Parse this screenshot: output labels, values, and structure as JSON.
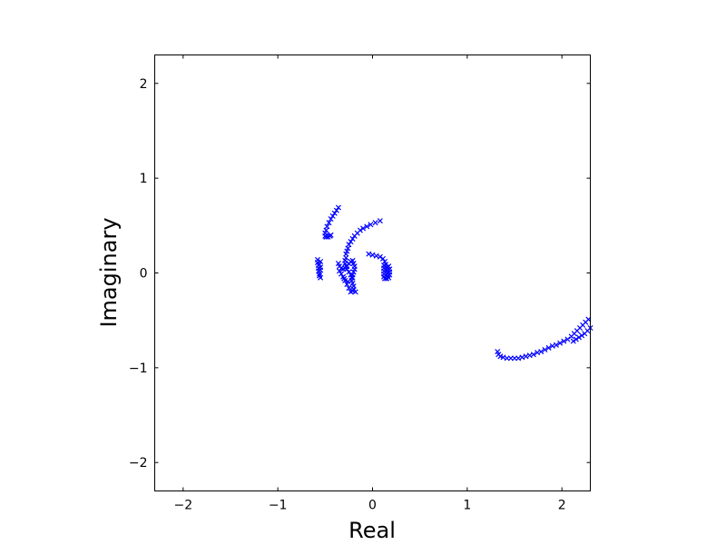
{
  "chart_data": {
    "type": "scatter",
    "title": "",
    "xlabel": "Real",
    "ylabel": "Imaginary",
    "xlim": [
      -2.3,
      2.3
    ],
    "ylim": [
      -2.3,
      2.3
    ],
    "xticks": [
      -2,
      -1,
      0,
      1,
      2
    ],
    "yticks": [
      -2,
      -1,
      0,
      1,
      2
    ],
    "xtick_labels": [
      "−2",
      "−1",
      "0",
      "1",
      "2"
    ],
    "ytick_labels": [
      "−2",
      "−1",
      "0",
      "1",
      "2"
    ],
    "grid": false,
    "legend": "none",
    "marker": "x",
    "color": "#0000ff",
    "series": [
      {
        "points": [
          [
            0.08,
            0.55
          ],
          [
            0.03,
            0.53
          ],
          [
            -0.02,
            0.51
          ],
          [
            -0.06,
            0.49
          ],
          [
            -0.1,
            0.47
          ],
          [
            -0.13,
            0.45
          ],
          [
            -0.16,
            0.42
          ],
          [
            -0.19,
            0.39
          ],
          [
            -0.21,
            0.36
          ],
          [
            -0.23,
            0.33
          ],
          [
            -0.25,
            0.3
          ],
          [
            -0.26,
            0.26
          ],
          [
            -0.27,
            0.23
          ],
          [
            -0.28,
            0.2
          ],
          [
            -0.28,
            0.16
          ],
          [
            -0.29,
            0.13
          ],
          [
            -0.29,
            0.1
          ],
          [
            -0.28,
            0.07
          ],
          [
            -0.27,
            0.04
          ],
          [
            -0.25,
            0.01
          ],
          [
            -0.23,
            -0.02
          ],
          [
            -0.21,
            -0.05
          ]
        ]
      },
      {
        "points": [
          [
            -0.36,
            0.69
          ],
          [
            -0.38,
            0.66
          ],
          [
            -0.4,
            0.63
          ],
          [
            -0.42,
            0.6
          ],
          [
            -0.44,
            0.57
          ],
          [
            -0.46,
            0.53
          ],
          [
            -0.48,
            0.49
          ],
          [
            -0.49,
            0.45
          ],
          [
            -0.5,
            0.42
          ],
          [
            -0.5,
            0.39
          ],
          [
            -0.49,
            0.38
          ],
          [
            -0.47,
            0.38
          ],
          [
            -0.45,
            0.39
          ],
          [
            -0.44,
            0.4
          ]
        ]
      },
      {
        "points": [
          [
            -0.58,
            0.14
          ],
          [
            -0.58,
            0.11
          ],
          [
            -0.57,
            0.08
          ],
          [
            -0.57,
            0.05
          ],
          [
            -0.57,
            0.02
          ],
          [
            -0.56,
            -0.01
          ],
          [
            -0.56,
            -0.03
          ],
          [
            -0.55,
            -0.05
          ],
          [
            -0.55,
            0.12
          ],
          [
            -0.56,
            0.09
          ],
          [
            -0.55,
            0.06
          ],
          [
            -0.55,
            0.03
          ]
        ]
      },
      {
        "points": [
          [
            -0.36,
            0.1
          ],
          [
            -0.35,
            0.07
          ],
          [
            -0.33,
            0.05
          ],
          [
            -0.31,
            0.04
          ],
          [
            -0.29,
            0.05
          ],
          [
            -0.27,
            0.07
          ],
          [
            -0.25,
            0.1
          ],
          [
            -0.23,
            0.12
          ],
          [
            -0.21,
            0.13
          ],
          [
            -0.2,
            0.1
          ],
          [
            -0.19,
            0.07
          ],
          [
            -0.19,
            0.04
          ],
          [
            -0.2,
            0.01
          ],
          [
            -0.21,
            -0.02
          ],
          [
            -0.22,
            -0.05
          ],
          [
            -0.22,
            -0.08
          ],
          [
            -0.21,
            -0.11
          ],
          [
            -0.2,
            -0.14
          ],
          [
            -0.2,
            -0.17
          ],
          [
            -0.21,
            -0.19
          ],
          [
            -0.23,
            -0.2
          ],
          [
            -0.18,
            -0.2
          ],
          [
            -0.25,
            -0.16
          ],
          [
            -0.27,
            -0.12
          ],
          [
            -0.29,
            -0.08
          ],
          [
            -0.31,
            -0.04
          ],
          [
            -0.33,
            -0.01
          ],
          [
            -0.35,
            0.02
          ],
          [
            -0.3,
            -0.06
          ],
          [
            -0.26,
            -0.09
          ]
        ]
      },
      {
        "points": [
          [
            -0.04,
            0.2
          ],
          [
            0.0,
            0.19
          ],
          [
            0.04,
            0.18
          ],
          [
            0.08,
            0.17
          ],
          [
            0.11,
            0.15
          ],
          [
            0.13,
            0.12
          ],
          [
            0.14,
            0.09
          ],
          [
            0.15,
            0.06
          ],
          [
            0.15,
            0.03
          ],
          [
            0.16,
            0.0
          ],
          [
            0.16,
            -0.03
          ],
          [
            0.15,
            -0.06
          ],
          [
            0.13,
            -0.06
          ],
          [
            0.12,
            -0.04
          ],
          [
            0.12,
            -0.01
          ],
          [
            0.12,
            0.02
          ],
          [
            0.12,
            0.05
          ],
          [
            0.12,
            0.08
          ],
          [
            0.17,
            0.07
          ],
          [
            0.18,
            0.04
          ],
          [
            0.18,
            0.01
          ],
          [
            0.18,
            -0.02
          ],
          [
            0.17,
            -0.05
          ]
        ]
      },
      {
        "points": [
          [
            1.32,
            -0.83
          ],
          [
            1.33,
            -0.86
          ],
          [
            1.35,
            -0.88
          ],
          [
            1.38,
            -0.89
          ],
          [
            1.42,
            -0.9
          ],
          [
            1.46,
            -0.9
          ],
          [
            1.5,
            -0.9
          ],
          [
            1.54,
            -0.9
          ],
          [
            1.58,
            -0.89
          ],
          [
            1.62,
            -0.88
          ],
          [
            1.66,
            -0.87
          ],
          [
            1.7,
            -0.86
          ],
          [
            1.74,
            -0.84
          ],
          [
            1.78,
            -0.83
          ],
          [
            1.82,
            -0.81
          ],
          [
            1.86,
            -0.79
          ],
          [
            1.9,
            -0.77
          ],
          [
            1.94,
            -0.76
          ],
          [
            1.98,
            -0.74
          ],
          [
            2.02,
            -0.72
          ],
          [
            2.06,
            -0.7
          ],
          [
            2.1,
            -0.67
          ],
          [
            2.13,
            -0.64
          ],
          [
            2.16,
            -0.61
          ],
          [
            2.19,
            -0.58
          ],
          [
            2.22,
            -0.55
          ],
          [
            2.25,
            -0.52
          ],
          [
            2.28,
            -0.49
          ]
        ]
      },
      {
        "points": [
          [
            2.12,
            -0.72
          ],
          [
            2.15,
            -0.7
          ],
          [
            2.18,
            -0.68
          ],
          [
            2.21,
            -0.66
          ],
          [
            2.24,
            -0.64
          ],
          [
            2.27,
            -0.61
          ],
          [
            2.3,
            -0.58
          ]
        ]
      }
    ]
  }
}
